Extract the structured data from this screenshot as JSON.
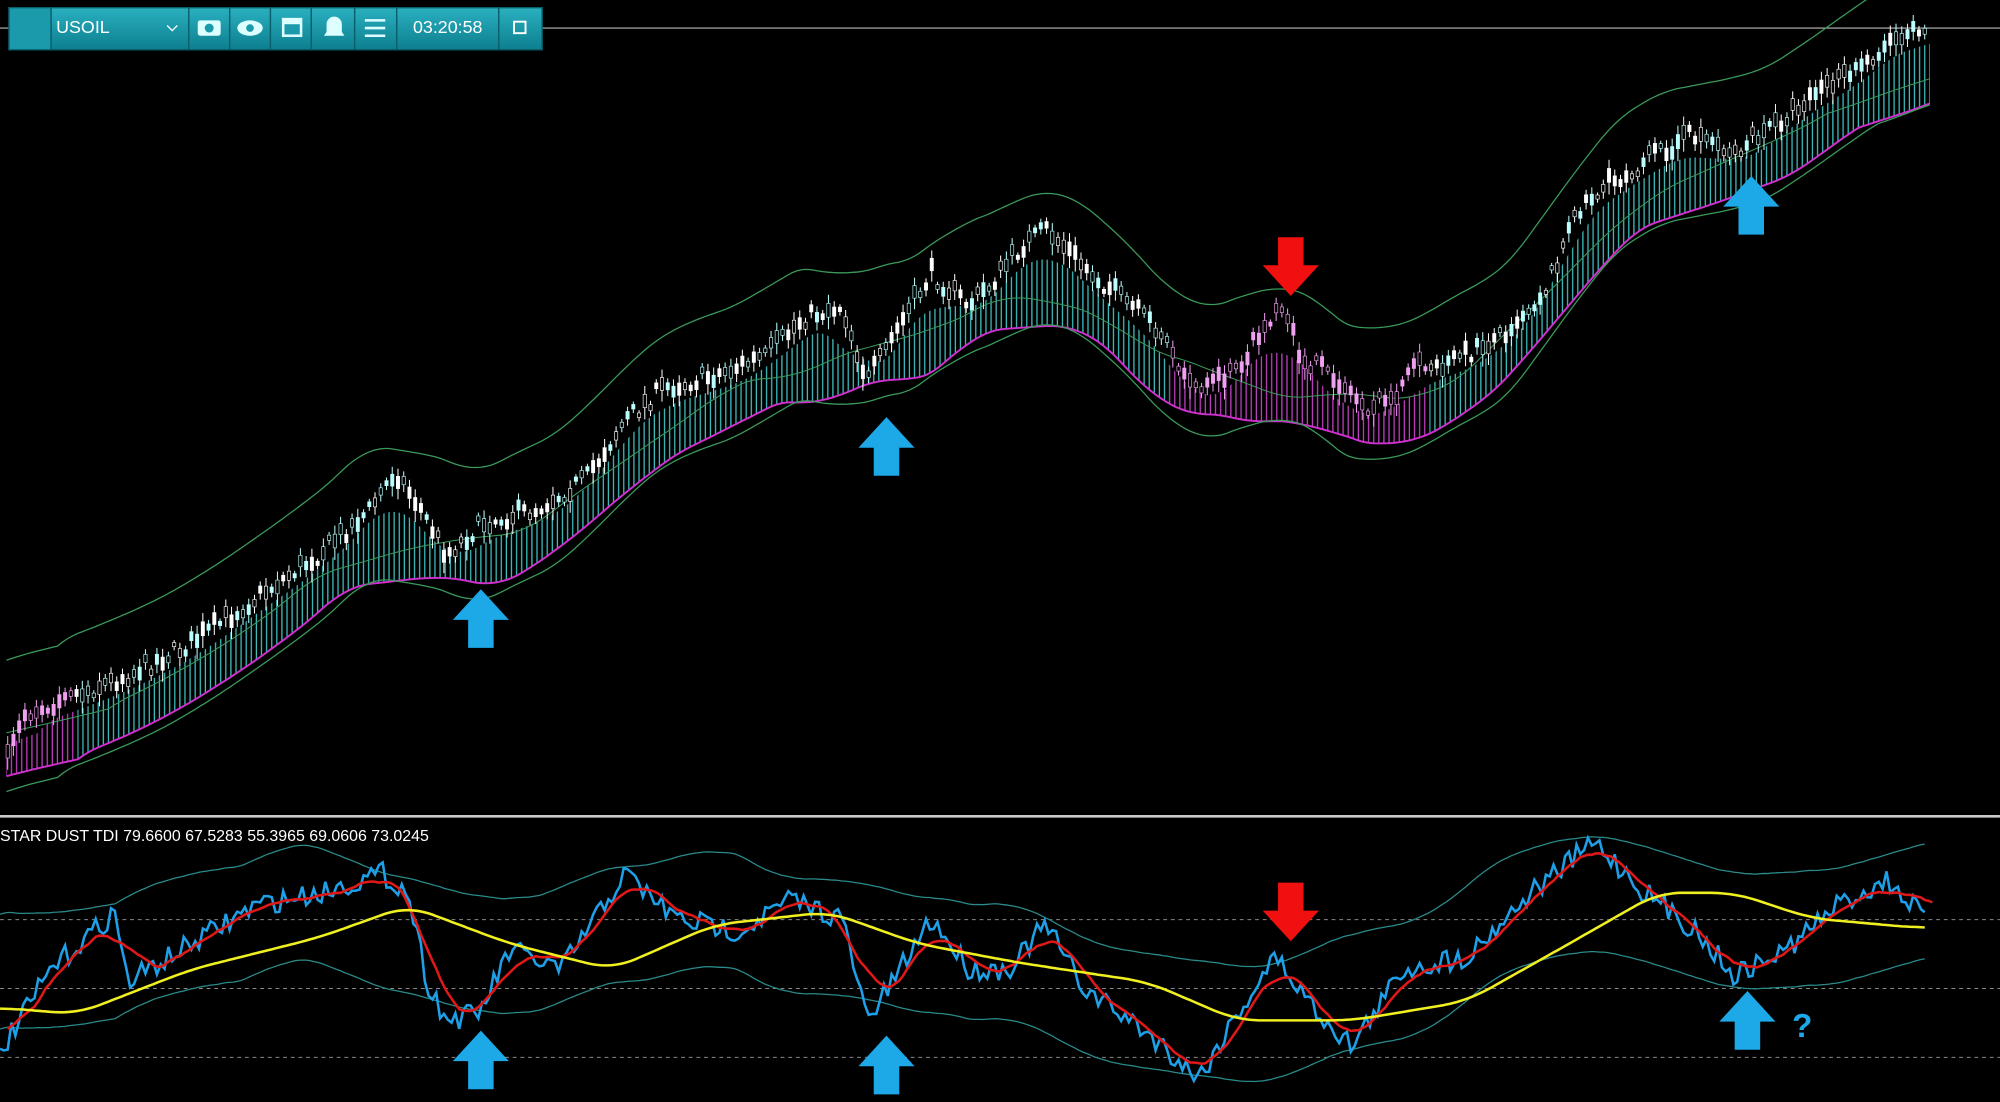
{
  "toolbar": {
    "symbol": "USOIL",
    "time": "03:20:58"
  },
  "indicator": {
    "label": "STAR DUST TDI 79.6600 67.5283 55.3965 69.0606 73.0245"
  },
  "annotation": "?"
}
